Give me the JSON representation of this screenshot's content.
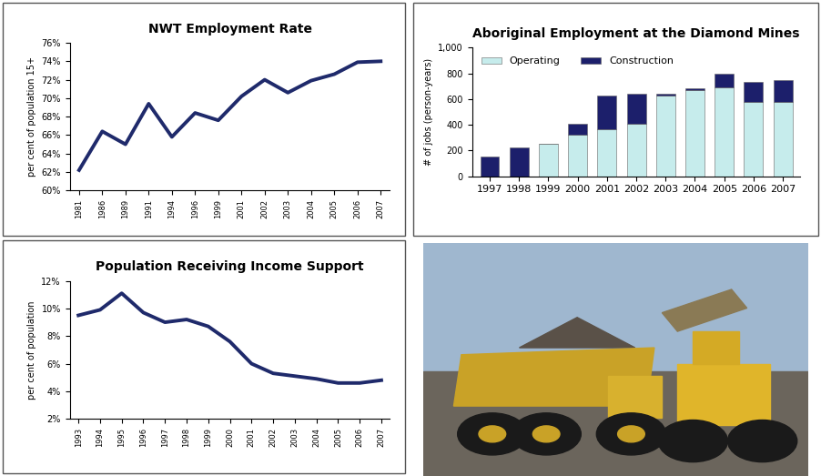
{
  "chart_data": [
    {
      "type": "line",
      "title": "NWT Employment Rate",
      "y_label": "per cent of population 15+",
      "categories": [
        "1981",
        "1986",
        "1989",
        "1991",
        "1994",
        "1996",
        "1999",
        "2001",
        "2002",
        "2003",
        "2004",
        "2005",
        "2006",
        "2007"
      ],
      "series": [
        {
          "name": "NWT Employment Rate",
          "color": "#1f2a6b",
          "values": [
            62.2,
            66.4,
            65.0,
            69.4,
            65.8,
            68.4,
            67.6,
            70.2,
            72.0,
            70.6,
            71.9,
            72.6,
            73.9,
            74.0
          ]
        }
      ],
      "ylim": [
        60,
        76
      ],
      "yticks": [
        {
          "value": 60,
          "label": "60%"
        },
        {
          "value": 62,
          "label": "62%"
        },
        {
          "value": 64,
          "label": "64%"
        },
        {
          "value": 66,
          "label": "66%"
        },
        {
          "value": 68,
          "label": "68%"
        },
        {
          "value": 70,
          "label": "70%"
        },
        {
          "value": 72,
          "label": "72%"
        },
        {
          "value": 74,
          "label": "74%"
        },
        {
          "value": 76,
          "label": "76%"
        }
      ],
      "grid": false
    },
    {
      "type": "bar",
      "title": "Aboriginal Employment at the Diamond Mines",
      "y_label": "# of jobs (person-years)",
      "categories": [
        "1997",
        "1998",
        "1999",
        "2000",
        "2001",
        "2002",
        "2003",
        "2004",
        "2005",
        "2006",
        "2007"
      ],
      "series": [
        {
          "name": "Operating",
          "color": "#c6ecec",
          "values": [
            0,
            0,
            250,
            320,
            365,
            410,
            630,
            670,
            690,
            580,
            580
          ]
        },
        {
          "name": "Construction",
          "color": "#1c1f6b",
          "values": [
            155,
            225,
            0,
            85,
            260,
            230,
            10,
            15,
            110,
            155,
            170
          ]
        }
      ],
      "stacked": true,
      "legend": "upper left",
      "ylim": [
        0,
        1000
      ],
      "yticks": [
        0,
        200,
        400,
        600,
        800,
        {
          "value": 1000,
          "label": "1,000"
        }
      ],
      "grid": false
    },
    {
      "type": "line",
      "title": "Population Receiving Income Support",
      "y_label": "per cent of population",
      "categories": [
        "1993",
        "1994",
        "1995",
        "1996",
        "1997",
        "1998",
        "1999",
        "2000",
        "2001",
        "2002",
        "2003",
        "2004",
        "2005",
        "2006",
        "2007"
      ],
      "series": [
        {
          "name": "Population Receiving Income Support",
          "color": "#1f2a6b",
          "values": [
            9.5,
            9.9,
            11.1,
            9.7,
            9.0,
            9.2,
            8.7,
            7.6,
            6.0,
            5.3,
            5.1,
            4.9,
            4.6,
            4.6,
            4.8
          ]
        }
      ],
      "ylim": [
        2,
        12
      ],
      "yticks": [
        {
          "value": 2,
          "label": "2%"
        },
        {
          "value": 4,
          "label": "4%"
        },
        {
          "value": 6,
          "label": "6%"
        },
        {
          "value": 8,
          "label": "8%"
        },
        {
          "value": 10,
          "label": "10%"
        },
        {
          "value": 12,
          "label": "12%"
        }
      ],
      "grid": false
    }
  ]
}
